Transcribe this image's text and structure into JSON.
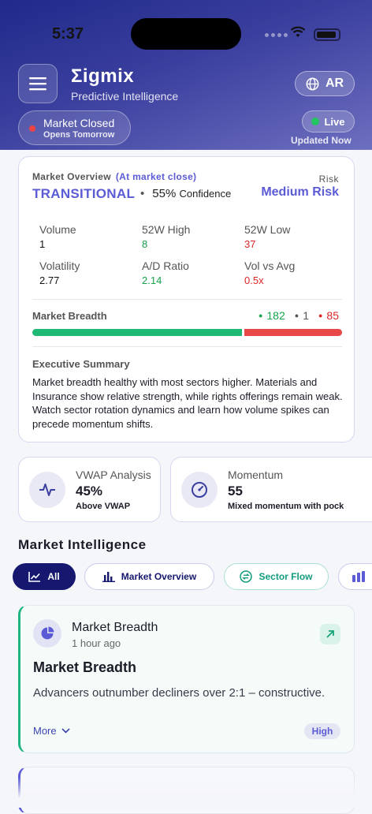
{
  "status_bar": {
    "time": "5:37"
  },
  "header": {
    "title": "Σigmix",
    "subtitle": "Predictive Intelligence",
    "language": "AR",
    "market_status": "Market Closed",
    "market_note": "Opens Tomorrow",
    "live_label": "Live",
    "updated": "Updated Now"
  },
  "overview": {
    "label": "Market Overview",
    "close_note": "(At market close)",
    "risk_label": "Risk",
    "state": "TRANSITIONAL",
    "confidence_value": "55%",
    "confidence_label": "Confidence",
    "risk_value": "Medium Risk",
    "stats": [
      {
        "label": "Volume",
        "value": "1"
      },
      {
        "label": "52W High",
        "value": "8"
      },
      {
        "label": "52W Low",
        "value": "37"
      },
      {
        "label": "Volatility",
        "value": "2.77"
      },
      {
        "label": "A/D Ratio",
        "value": "2.14"
      },
      {
        "label": "Vol vs Avg",
        "value": "0.5x"
      }
    ],
    "breadth_label": "Market Breadth",
    "breadth": {
      "advancers": 182,
      "unchanged": 1,
      "decliners": 85
    },
    "summary_label": "Executive Summary",
    "summary_text": "Market breadth healthy with most sectors higher. Materials and Insurance show relative strength, while rights offerings remain weak. Watch sector rotation dynamics and learn how volume spikes can precede momentum shifts."
  },
  "mini_cards": [
    {
      "title": "VWAP Analysis",
      "value": "45%",
      "sub": "Above VWAP",
      "icon": "pulse-icon"
    },
    {
      "title": "Momentum",
      "value": "55",
      "sub": "Mixed momentum with pock",
      "icon": "gauge-icon"
    }
  ],
  "section_title": "Market Intelligence",
  "filters": [
    {
      "label": "All",
      "icon": "line-chart-icon"
    },
    {
      "label": "Market Overview",
      "icon": "bar-chart-icon"
    },
    {
      "label": "Sector Flow",
      "icon": "swap-icon"
    }
  ],
  "insight": {
    "category": "Market Breadth",
    "time": "1 hour ago",
    "heading": "Market Breadth",
    "description": "Advancers outnumber decliners over 2:1 – constructive.",
    "more": "More",
    "priority": "High"
  },
  "colors": {
    "accent": "#5b5bd6",
    "positive": "#16a34a",
    "negative": "#dc2626",
    "navy": "#15186e"
  }
}
